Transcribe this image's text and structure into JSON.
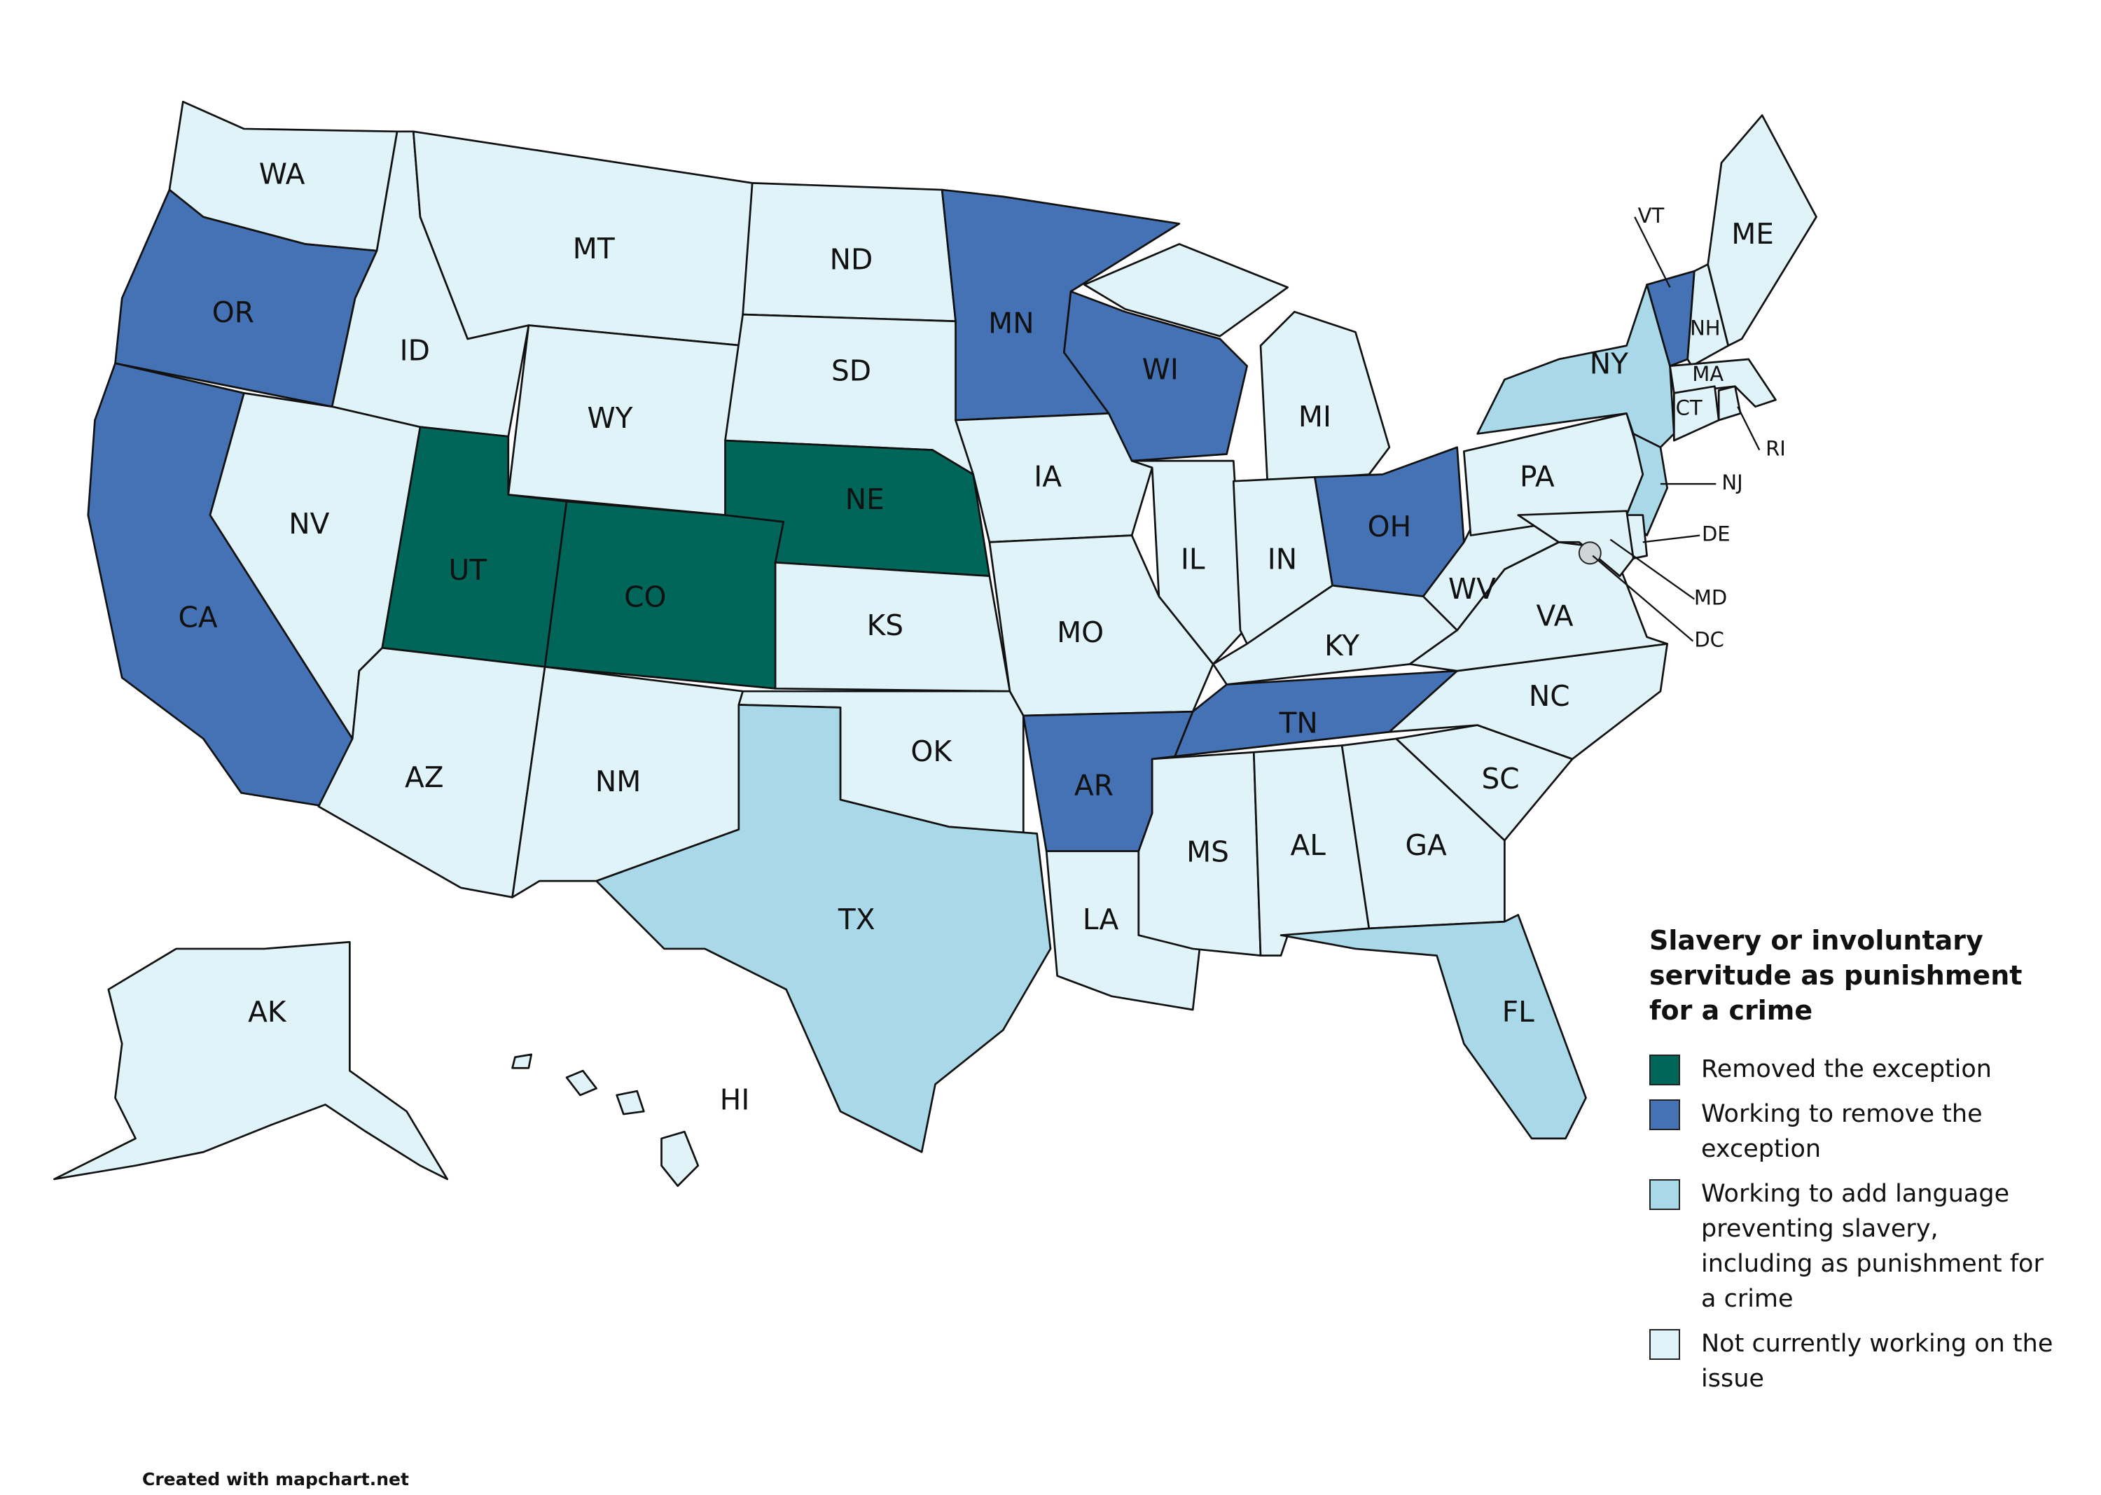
{
  "title": "Slavery or involuntary servitude as punishment for a crime",
  "legend": [
    {
      "label": "Removed the exception",
      "color": "#00665a"
    },
    {
      "label": "Working to remove the exception",
      "color": "#4572b4"
    },
    {
      "label": "Working to add language preventing slavery, including as punishment for a crime",
      "color": "#a9d8e8"
    },
    {
      "label": "Not currently working on the issue",
      "color": "#e0f3f8"
    }
  ],
  "states": [
    {
      "label": "WA",
      "status": 3
    },
    {
      "label": "OR",
      "status": 1
    },
    {
      "label": "CA",
      "status": 1
    },
    {
      "label": "ID",
      "status": 3
    },
    {
      "label": "NV",
      "status": 3
    },
    {
      "label": "MT",
      "status": 3
    },
    {
      "label": "WY",
      "status": 3
    },
    {
      "label": "UT",
      "status": 0
    },
    {
      "label": "CO",
      "status": 0
    },
    {
      "label": "AZ",
      "status": 3
    },
    {
      "label": "NM",
      "status": 3
    },
    {
      "label": "ND",
      "status": 3
    },
    {
      "label": "SD",
      "status": 3
    },
    {
      "label": "NE",
      "status": 0
    },
    {
      "label": "KS",
      "status": 3
    },
    {
      "label": "OK",
      "status": 3
    },
    {
      "label": "TX",
      "status": 2
    },
    {
      "label": "MN",
      "status": 1
    },
    {
      "label": "IA",
      "status": 3
    },
    {
      "label": "MO",
      "status": 3
    },
    {
      "label": "AR",
      "status": 1
    },
    {
      "label": "LA",
      "status": 3
    },
    {
      "label": "WI",
      "status": 1
    },
    {
      "label": "IL",
      "status": 3
    },
    {
      "label": "MI",
      "status": 3
    },
    {
      "label": "IN",
      "status": 3
    },
    {
      "label": "OH",
      "status": 1
    },
    {
      "label": "KY",
      "status": 3
    },
    {
      "label": "TN",
      "status": 1
    },
    {
      "label": "MS",
      "status": 3
    },
    {
      "label": "AL",
      "status": 3
    },
    {
      "label": "GA",
      "status": 3
    },
    {
      "label": "FL",
      "status": 2
    },
    {
      "label": "SC",
      "status": 3
    },
    {
      "label": "NC",
      "status": 3
    },
    {
      "label": "VA",
      "status": 3
    },
    {
      "label": "WV",
      "status": 3
    },
    {
      "label": "PA",
      "status": 3
    },
    {
      "label": "NY",
      "status": 2
    },
    {
      "label": "NJ",
      "status": 2
    },
    {
      "label": "VT",
      "status": 1
    },
    {
      "label": "NH",
      "status": 3
    },
    {
      "label": "ME",
      "status": 3
    },
    {
      "label": "MA",
      "status": 3
    },
    {
      "label": "CT",
      "status": 3
    },
    {
      "label": "RI",
      "status": 3
    },
    {
      "label": "DE",
      "status": 3
    },
    {
      "label": "MD",
      "status": 3
    },
    {
      "label": "DC",
      "status": 3
    },
    {
      "label": "AK",
      "status": 3
    },
    {
      "label": "HI",
      "status": 3
    }
  ],
  "credit": "Created with mapchart.net"
}
